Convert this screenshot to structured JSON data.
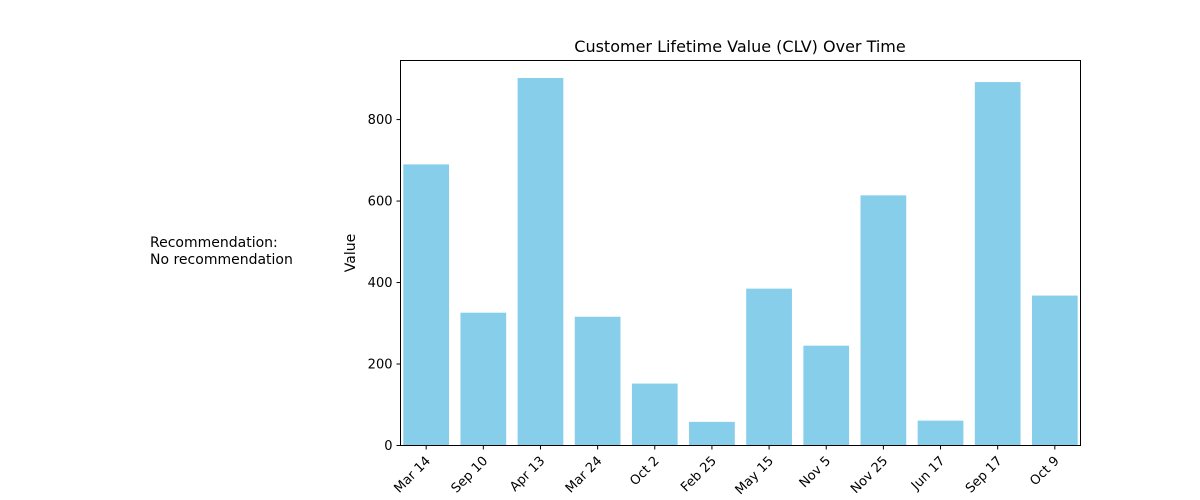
{
  "recommendation": {
    "heading": "Recommendation:",
    "text": "No recommendation"
  },
  "chart_data": {
    "type": "bar",
    "title": "Customer Lifetime Value (CLV) Over Time",
    "xlabel": "",
    "ylabel": "Value",
    "categories": [
      "Mar 14",
      "Sep 10",
      "Apr 13",
      "Mar 24",
      "Oct 2",
      "Feb 25",
      "May 15",
      "Nov 5",
      "Nov 25",
      "Jun 17",
      "Sep 17",
      "Oct 9"
    ],
    "values": [
      690,
      326,
      902,
      316,
      152,
      58,
      385,
      245,
      614,
      61,
      892,
      368
    ],
    "ylim": [
      0,
      945
    ],
    "yticks": [
      0,
      200,
      400,
      600,
      800
    ],
    "bar_color": "#87ceeb",
    "grid": false
  }
}
